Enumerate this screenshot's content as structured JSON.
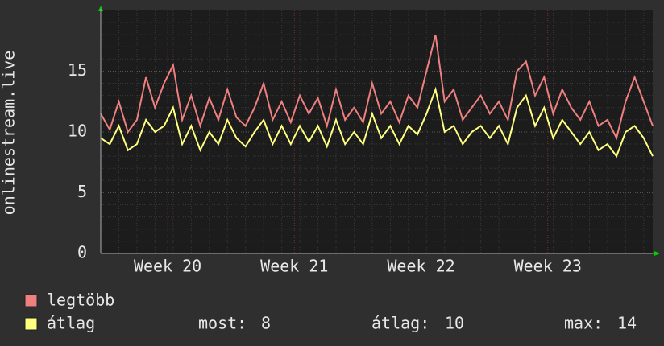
{
  "chart_data": {
    "type": "line",
    "y_label": "onlinestream.live",
    "x": [
      0,
      0.5,
      1,
      1.5,
      2,
      2.5,
      3,
      3.5,
      4,
      4.5,
      5,
      5.5,
      6,
      6.5,
      7,
      7.5,
      8,
      8.5,
      9,
      9.5,
      10,
      10.5,
      11,
      11.5,
      12,
      12.5,
      13,
      13.5,
      14,
      14.5,
      15,
      15.5,
      16,
      16.5,
      17,
      17.5,
      18,
      18.5,
      19,
      19.5,
      20,
      20.5,
      21,
      21.5,
      22,
      22.5,
      23,
      23.5,
      24,
      24.5,
      25,
      25.5,
      26,
      26.5,
      27,
      27.5,
      28,
      28.5,
      29,
      29.5,
      30,
      30.5
    ],
    "series": [
      {
        "name": "legtöbb",
        "color": "#f08080",
        "values": [
          11.5,
          10.2,
          12.5,
          10,
          11,
          14.5,
          12,
          14,
          15.5,
          11,
          13,
          10.5,
          12.8,
          11,
          13.5,
          11.2,
          10.5,
          12,
          14,
          11,
          12.5,
          10.8,
          13,
          11.5,
          12.8,
          10.5,
          13.5,
          11,
          12,
          10.8,
          14,
          11.5,
          12.5,
          10.8,
          13,
          12,
          15,
          18,
          12.5,
          13.5,
          11,
          12,
          13,
          11.5,
          12.5,
          11,
          15,
          15.8,
          13,
          14.5,
          11.5,
          13.5,
          12,
          11,
          12.5,
          10.5,
          11,
          9.5,
          12.5,
          14.5,
          12.5,
          10.5
        ]
      },
      {
        "name": "átlag",
        "color": "#ffff80",
        "values": [
          9.5,
          9,
          10.5,
          8.5,
          9,
          11,
          10,
          10.5,
          12,
          9,
          10.5,
          8.5,
          10,
          9,
          11,
          9.5,
          8.8,
          10,
          11,
          9,
          10.5,
          9,
          10.5,
          9.2,
          10.5,
          8.8,
          11,
          9,
          10,
          9,
          11.5,
          9.5,
          10.5,
          9,
          10.5,
          9.8,
          11.5,
          13.5,
          10,
          10.5,
          9,
          10,
          10.5,
          9.5,
          10.5,
          9,
          12,
          13,
          10.5,
          12,
          9.5,
          11,
          10,
          9,
          10,
          8.5,
          9,
          8,
          10,
          10.5,
          9.5,
          8
        ]
      }
    ],
    "xlim": [
      0,
      30.5
    ],
    "xticks": [
      {
        "value": 3.7,
        "label": "Week 20"
      },
      {
        "value": 10.7,
        "label": "Week 21"
      },
      {
        "value": 17.7,
        "label": "Week 22"
      },
      {
        "value": 24.7,
        "label": "Week 23"
      }
    ],
    "ylim": [
      0,
      20
    ],
    "yticks": [
      0,
      5,
      10,
      15
    ],
    "grid": true,
    "stats": [
      {
        "label": "most:",
        "value": 8
      },
      {
        "label": "átlag:",
        "value": 10
      },
      {
        "label": "max:",
        "value": 14
      }
    ]
  }
}
